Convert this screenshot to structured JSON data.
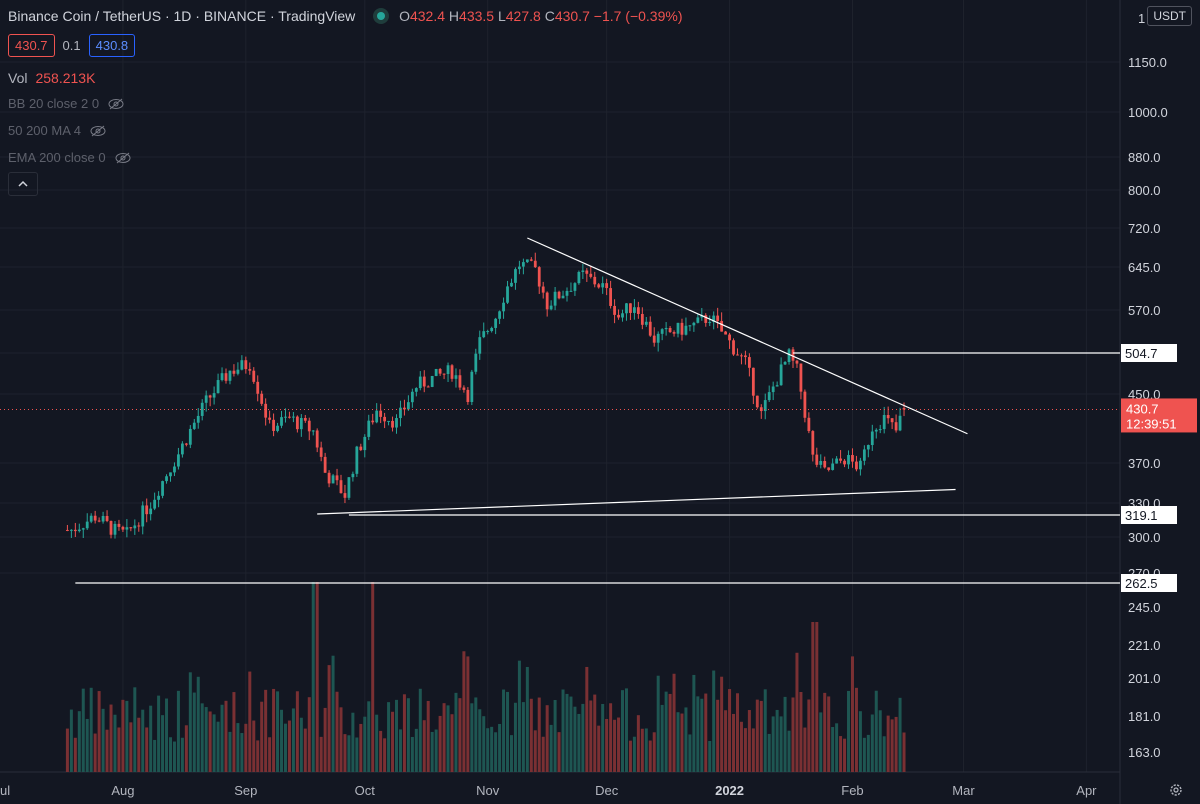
{
  "legend": {
    "title": "Binance Coin / TetherUS · 1D · BINANCE · TradingView",
    "o_label": "O",
    "o": "432.4",
    "h_label": "H",
    "h": "433.5",
    "l_label": "L",
    "l": "427.8",
    "c_label": "C",
    "c": "430.7",
    "change": "−1.7 (−0.39%)"
  },
  "price_row": {
    "sell": "430.7",
    "spread": "0.1",
    "buy": "430.8"
  },
  "indicators": {
    "vol_label": "Vol",
    "vol_value": "258.213K",
    "bb": "BB 20 close 2 0",
    "ma": "50 200 MA 4",
    "ema": "EMA 200 close 0"
  },
  "collapse_icon": "chevron-up-icon",
  "currency": "USDT",
  "price_axis": {
    "ticks": [
      "1150.0",
      "1000.0",
      "880.0",
      "800.0",
      "720.0",
      "645.0",
      "570.0",
      "504.7",
      "450.0",
      "370.0",
      "330.0",
      "319.1",
      "300.0",
      "270.0",
      "262.5",
      "245.0",
      "221.0",
      "201.0",
      "181.0",
      "163.0"
    ],
    "top_tick": "1",
    "current_price": "430.7",
    "countdown": "12:39:51",
    "resistance_label": "504.7",
    "support_label": "319.1",
    "low_label": "262.5"
  },
  "time_axis": [
    "ul",
    "Aug",
    "Sep",
    "Oct",
    "Nov",
    "Dec",
    "2022",
    "Feb",
    "Mar",
    "Apr"
  ],
  "colors": {
    "up": "#26a69a",
    "down": "#ef5350",
    "bg": "#131722",
    "grid": "#1e222d",
    "line": "#ffffff"
  },
  "chart_data": {
    "type": "candlestick",
    "symbol": "BNB/USDT",
    "interval": "1D",
    "period": [
      "2021-07-18",
      "2022-02-14"
    ],
    "price_range": [
      250,
      1200
    ],
    "price_scale": "log",
    "anchors": [
      {
        "date": "2021-07-19",
        "close": 306
      },
      {
        "date": "2021-07-25",
        "close": 318
      },
      {
        "date": "2021-07-30",
        "close": 305
      },
      {
        "date": "2021-08-02",
        "close": 302
      },
      {
        "date": "2021-08-08",
        "close": 330
      },
      {
        "date": "2021-08-15",
        "close": 380
      },
      {
        "date": "2021-08-22",
        "close": 440
      },
      {
        "date": "2021-08-28",
        "close": 480
      },
      {
        "date": "2021-09-02",
        "close": 490
      },
      {
        "date": "2021-09-07",
        "close": 410
      },
      {
        "date": "2021-09-12",
        "close": 420
      },
      {
        "date": "2021-09-18",
        "close": 405
      },
      {
        "date": "2021-09-21",
        "close": 360
      },
      {
        "date": "2021-09-26",
        "close": 338
      },
      {
        "date": "2021-09-29",
        "close": 380
      },
      {
        "date": "2021-10-04",
        "close": 430
      },
      {
        "date": "2021-10-09",
        "close": 415
      },
      {
        "date": "2021-10-14",
        "close": 460
      },
      {
        "date": "2021-10-18",
        "close": 470
      },
      {
        "date": "2021-10-23",
        "close": 480
      },
      {
        "date": "2021-10-27",
        "close": 450
      },
      {
        "date": "2021-10-30",
        "close": 520
      },
      {
        "date": "2021-11-03",
        "close": 560
      },
      {
        "date": "2021-11-06",
        "close": 610
      },
      {
        "date": "2021-11-09",
        "close": 650
      },
      {
        "date": "2021-11-13",
        "close": 640
      },
      {
        "date": "2021-11-16",
        "close": 580
      },
      {
        "date": "2021-11-20",
        "close": 600
      },
      {
        "date": "2021-11-25",
        "close": 630
      },
      {
        "date": "2021-11-30",
        "close": 610
      },
      {
        "date": "2021-12-04",
        "close": 560
      },
      {
        "date": "2021-12-08",
        "close": 580
      },
      {
        "date": "2021-12-13",
        "close": 525
      },
      {
        "date": "2021-12-17",
        "close": 535
      },
      {
        "date": "2021-12-23",
        "close": 545
      },
      {
        "date": "2021-12-27",
        "close": 560
      },
      {
        "date": "2022-01-01",
        "close": 520
      },
      {
        "date": "2022-01-05",
        "close": 490
      },
      {
        "date": "2022-01-09",
        "close": 425
      },
      {
        "date": "2022-01-13",
        "close": 470
      },
      {
        "date": "2022-01-16",
        "close": 500
      },
      {
        "date": "2022-01-18",
        "close": 480
      },
      {
        "date": "2022-01-22",
        "close": 375
      },
      {
        "date": "2022-01-25",
        "close": 360
      },
      {
        "date": "2022-01-30",
        "close": 375
      },
      {
        "date": "2022-02-03",
        "close": 365
      },
      {
        "date": "2022-02-06",
        "close": 410
      },
      {
        "date": "2022-02-09",
        "close": 420
      },
      {
        "date": "2022-02-12",
        "close": 405
      },
      {
        "date": "2022-02-14",
        "close": 430.7
      }
    ],
    "volume": {
      "max_shown": "spike bars mid-Sep, early Oct, late Jan"
    },
    "drawings": [
      {
        "type": "trendline",
        "name": "descending resistance",
        "from": {
          "date": "2021-11-11",
          "price": 700
        },
        "to": {
          "date": "2022-03-02",
          "price": 402
        }
      },
      {
        "type": "trendline",
        "name": "ascending support",
        "from": {
          "date": "2021-09-19",
          "price": 320
        },
        "to": {
          "date": "2022-02-27",
          "price": 343
        }
      },
      {
        "type": "horizontal",
        "name": "resistance",
        "price": 504.7,
        "from_date": "2022-01-17"
      },
      {
        "type": "horizontal",
        "name": "support",
        "price": 319.1,
        "from_date": "2021-09-27"
      },
      {
        "type": "horizontal",
        "name": "low",
        "price": 262.5,
        "from_date": "2021-07-20"
      }
    ]
  }
}
